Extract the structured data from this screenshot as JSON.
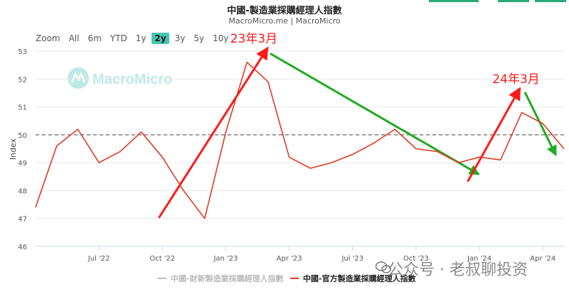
{
  "title": "中國-製造業採購經理人指數",
  "subtitle": "MacroMicro.me | MacroMicro",
  "zoom": {
    "label": "Zoom",
    "options": [
      "All",
      "6m",
      "YTD",
      "1y",
      "2y",
      "3y",
      "5y",
      "10y"
    ],
    "active": "2y"
  },
  "logo_text": "MacroMicro",
  "watermark": "公众号 · 老叔聊投资",
  "colors": {
    "official": "#e03b24",
    "caixin": "#bbbbbb",
    "accent": "#47c6b0",
    "up_arrow": "#ff1a1a",
    "down_arrow": "#22aa22"
  },
  "chart_data": {
    "type": "line",
    "ylabel": "Index",
    "ylim": [
      46,
      53
    ],
    "yticks": [
      "46",
      "47",
      "48",
      "49",
      "50",
      "51",
      "52",
      "53"
    ],
    "x_range": [
      "2022-04",
      "2024-05"
    ],
    "xticks": [
      {
        "label": "Jul '22",
        "date": "2022-07"
      },
      {
        "label": "Oct '22",
        "date": "2022-10"
      },
      {
        "label": "Jan '23",
        "date": "2023-01"
      },
      {
        "label": "Apr '23",
        "date": "2023-04"
      },
      {
        "label": "Jul '23",
        "date": "2023-07"
      },
      {
        "label": "Oct '23",
        "date": "2023-10"
      },
      {
        "label": "Jan '24",
        "date": "2024-01"
      },
      {
        "label": "Apr '24",
        "date": "2024-04"
      }
    ],
    "reference_line": 50,
    "series": [
      {
        "name": "中國-官方製造業採購經理人指數",
        "dates": [
          "2022-04",
          "2022-05",
          "2022-06",
          "2022-07",
          "2022-08",
          "2022-09",
          "2022-10",
          "2022-11",
          "2022-12",
          "2023-01",
          "2023-02",
          "2023-03",
          "2023-04",
          "2023-05",
          "2023-06",
          "2023-07",
          "2023-08",
          "2023-09",
          "2023-10",
          "2023-11",
          "2023-12",
          "2024-01",
          "2024-02",
          "2024-03",
          "2024-04",
          "2024-05"
        ],
        "values": [
          47.4,
          49.6,
          50.2,
          49.0,
          49.4,
          50.1,
          49.2,
          48.0,
          47.0,
          50.1,
          52.6,
          51.9,
          49.2,
          48.8,
          49.0,
          49.3,
          49.7,
          50.2,
          49.5,
          49.4,
          49.0,
          49.2,
          49.1,
          50.8,
          50.4,
          49.5
        ]
      },
      {
        "name": "中國-財新製造業採購經理人指數",
        "hidden": true
      }
    ],
    "annotations": [
      {
        "text": "23年3月",
        "date": "2023-03"
      },
      {
        "text": "24年3月",
        "date": "2024-03"
      }
    ]
  }
}
